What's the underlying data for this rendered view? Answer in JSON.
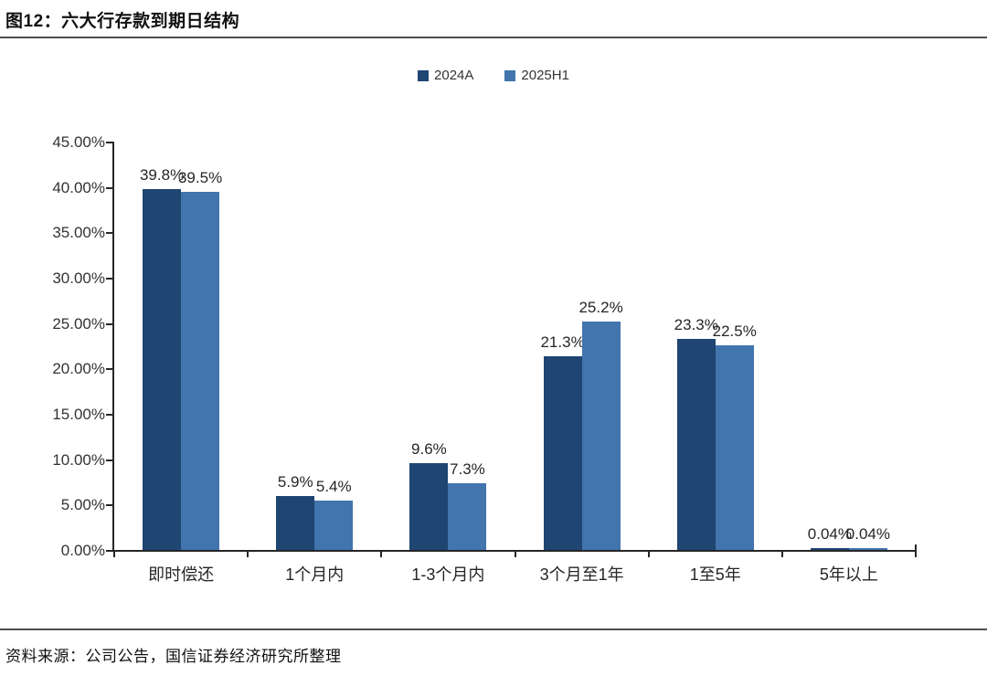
{
  "title": "图12：六大行存款到期日结构",
  "source": "资料来源：公司公告，国信证券经济研究所整理",
  "colors": {
    "series_2024": "#1F4572",
    "series_2025": "#4274AD",
    "axis": "#262626",
    "rule": "#4d4d4d"
  },
  "chart_data": {
    "type": "bar",
    "title": "图12：六大行存款到期日结构",
    "categories": [
      "即时偿还",
      "1个月内",
      "1-3个月内",
      "3个月至1年",
      "1至5年",
      "5年以上"
    ],
    "series": [
      {
        "name": "2024A",
        "color": "#1F4572",
        "values": [
          39.8,
          5.9,
          9.6,
          21.3,
          23.3,
          0.04
        ],
        "labels": [
          "39.8%",
          "5.9%",
          "9.6%",
          "21.3%",
          "23.3%",
          "0.04%"
        ]
      },
      {
        "name": "2025H1",
        "color": "#4274AD",
        "values": [
          39.5,
          5.4,
          7.3,
          25.2,
          22.5,
          0.04
        ],
        "labels": [
          "39.5%",
          "5.4%",
          "7.3%",
          "25.2%",
          "22.5%",
          "0.04%"
        ]
      }
    ],
    "xlabel": "",
    "ylabel": "",
    "ylim": [
      0,
      45
    ],
    "ytick_step": 5,
    "ytick_labels": [
      "0.00%",
      "5.00%",
      "10.00%",
      "15.00%",
      "20.00%",
      "25.00%",
      "30.00%",
      "35.00%",
      "40.00%",
      "45.00%"
    ],
    "grid": false,
    "legend_position": "top-center",
    "bar_value_labels_shown": true
  }
}
